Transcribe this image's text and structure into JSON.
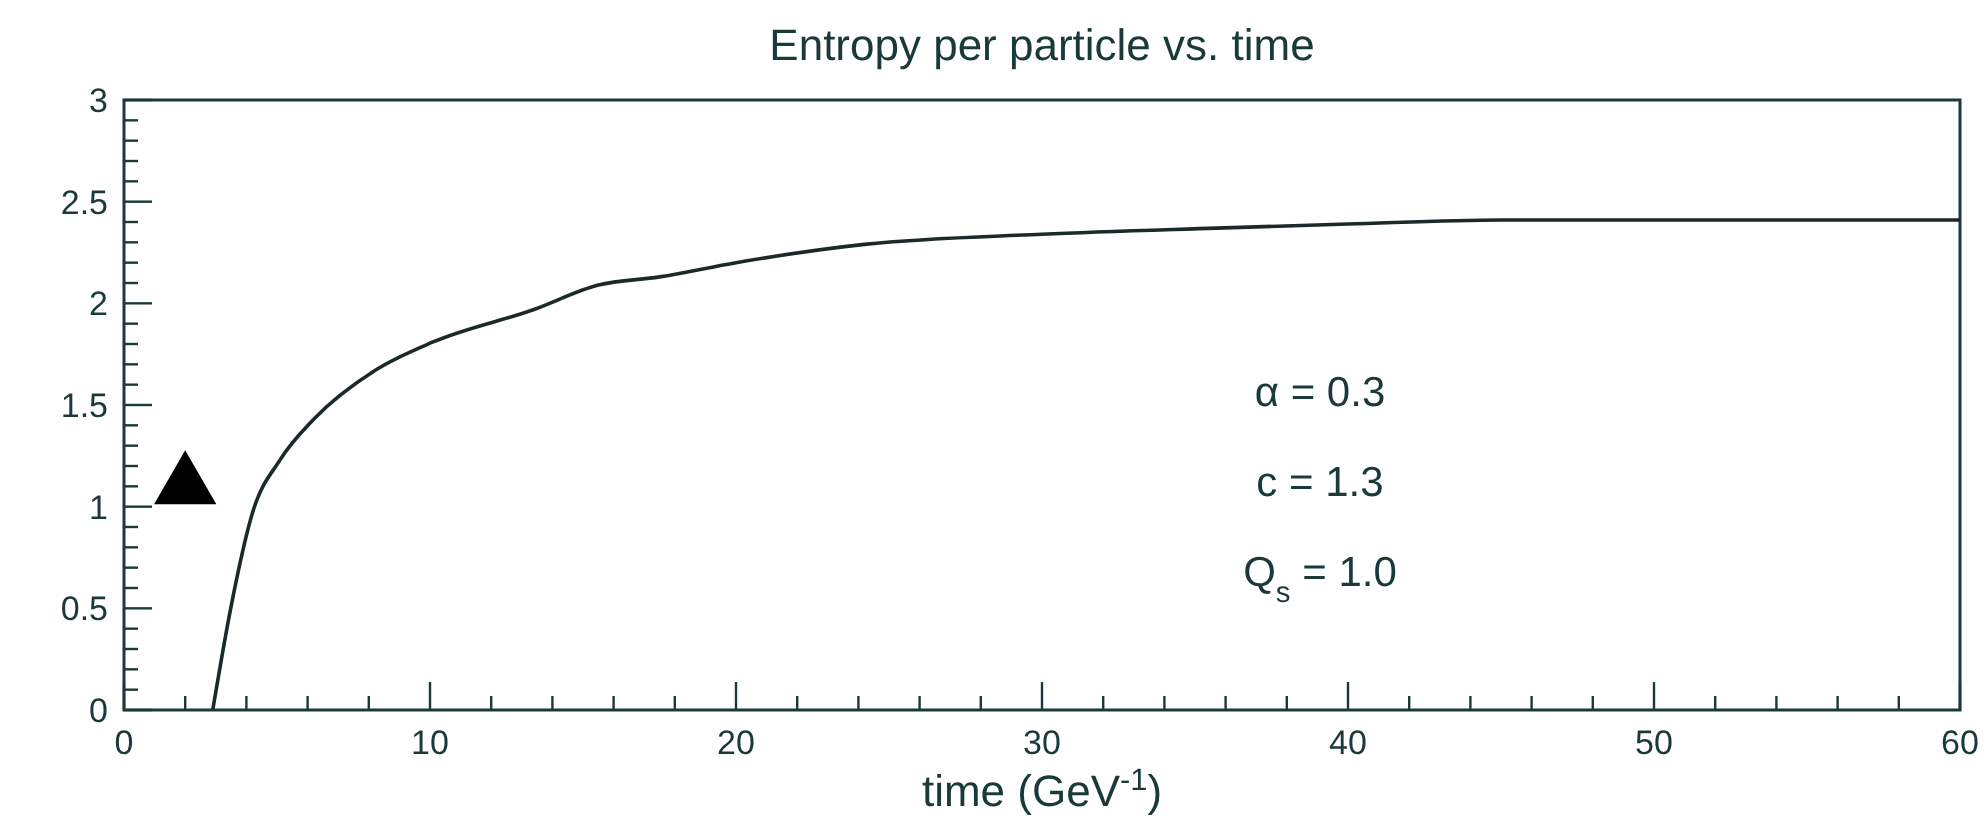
{
  "chart_data": {
    "type": "line",
    "title": "Entropy per particle vs. time",
    "xlabel": "time (GeV$^{-1}$)",
    "annotations": [
      "α = 0.3",
      "c = 1.3",
      "Q$_{s}$ = 1.0"
    ],
    "xlim": [
      0,
      60
    ],
    "ylim": [
      0,
      3
    ],
    "xticks": [
      0,
      {
        "value": 2,
        "label": null
      },
      {
        "value": 4,
        "label": null
      },
      {
        "value": 6,
        "label": null
      },
      {
        "value": 8,
        "label": null
      },
      10,
      {
        "value": 12,
        "label": null
      },
      {
        "value": 14,
        "label": null
      },
      {
        "value": 16,
        "label": null
      },
      {
        "value": 18,
        "label": null
      },
      20,
      {
        "value": 22,
        "label": null
      },
      {
        "value": 24,
        "label": null
      },
      {
        "value": 26,
        "label": null
      },
      {
        "value": 28,
        "label": null
      },
      30,
      {
        "value": 32,
        "label": null
      },
      {
        "value": 34,
        "label": null
      },
      {
        "value": 36,
        "label": null
      },
      {
        "value": 38,
        "label": null
      },
      40,
      {
        "value": 42,
        "label": null
      },
      {
        "value": 44,
        "label": null
      },
      {
        "value": 46,
        "label": null
      },
      {
        "value": 48,
        "label": null
      },
      50,
      {
        "value": 52,
        "label": null
      },
      {
        "value": 54,
        "label": null
      },
      {
        "value": 56,
        "label": null
      },
      {
        "value": 58,
        "label": null
      },
      60
    ],
    "yticks": [
      0,
      {
        "value": 0.1,
        "label": null
      },
      {
        "value": 0.2,
        "label": null
      },
      {
        "value": 0.3,
        "label": null
      },
      {
        "value": 0.4,
        "label": null
      },
      0.5,
      {
        "value": 0.6,
        "label": null
      },
      {
        "value": 0.7,
        "label": null
      },
      {
        "value": 0.8,
        "label": null
      },
      {
        "value": 0.9,
        "label": null
      },
      1,
      {
        "value": 1.1,
        "label": null
      },
      {
        "value": 1.2,
        "label": null
      },
      {
        "value": 1.3,
        "label": null
      },
      {
        "value": 1.4,
        "label": null
      },
      1.5,
      {
        "value": 1.6,
        "label": null
      },
      {
        "value": 1.7,
        "label": null
      },
      {
        "value": 1.8,
        "label": null
      },
      {
        "value": 1.9,
        "label": null
      },
      2,
      {
        "value": 2.1,
        "label": null
      },
      {
        "value": 2.2,
        "label": null
      },
      {
        "value": 2.3,
        "label": null
      },
      {
        "value": 2.4,
        "label": null
      },
      2.5,
      {
        "value": 2.6,
        "label": null
      },
      {
        "value": 2.7,
        "label": null
      },
      {
        "value": 2.8,
        "label": null
      },
      {
        "value": 2.9,
        "label": null
      },
      3
    ],
    "grid": false,
    "series": [
      {
        "color": "#1a2a2a",
        "marker": "none",
        "line_style": "solid",
        "x": [
          2.9,
          3.5,
          4.2,
          5.1,
          6.2,
          8.2,
          10.1,
          13.4,
          15.5,
          17.5,
          20,
          24.2,
          30,
          35.7,
          40,
          45,
          50,
          60
        ],
        "values": [
          0,
          0.51,
          0.97,
          1.23,
          1.43,
          1.67,
          1.81,
          1.97,
          2.09,
          2.13,
          2.2,
          2.29,
          2.34,
          2.37,
          2.39,
          2.41,
          2.41,
          2.41
        ]
      },
      {
        "type": "scatter",
        "color": "#000000",
        "marker": "triangle",
        "x": [
          2
        ],
        "values": [
          1.1
        ]
      }
    ]
  }
}
